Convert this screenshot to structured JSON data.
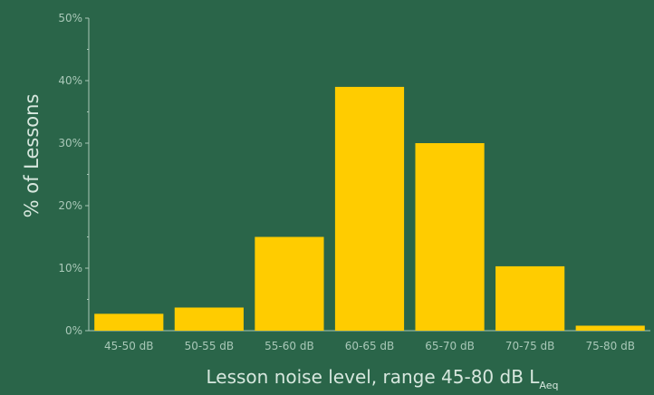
{
  "colors": {
    "background": "#2a6549",
    "bar": "#ffcc00",
    "axis": "#a9c8b8",
    "text": "#d7e7de"
  },
  "chart_data": {
    "type": "bar",
    "title": "",
    "xlabel": "Lesson noise level, range 45-80 dB L",
    "xlabel_subscript": "Aeq",
    "ylabel": "% of Lessons",
    "categories": [
      "45-50 dB",
      "50-55 dB",
      "55-60 dB",
      "60-65 dB",
      "65-70 dB",
      "70-75 dB",
      "75-80 dB"
    ],
    "values": [
      2.7,
      3.7,
      15,
      39,
      30,
      10.3,
      0.8
    ],
    "ylim": [
      0,
      50
    ],
    "y_ticks": [
      0,
      10,
      20,
      30,
      40,
      50
    ],
    "y_tick_labels": [
      "0%",
      "10%",
      "20%",
      "30%",
      "40%",
      "50%"
    ],
    "grid": false,
    "legend": "none"
  }
}
